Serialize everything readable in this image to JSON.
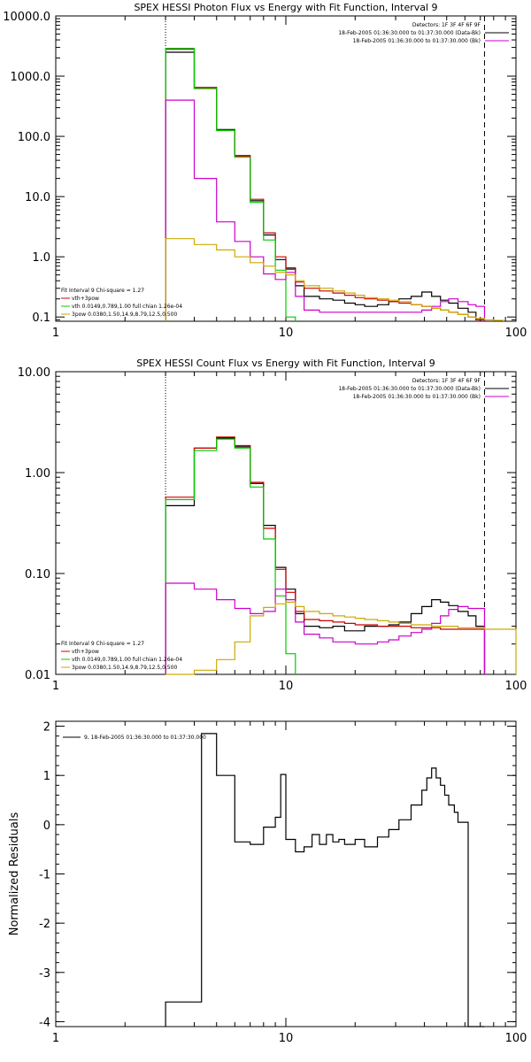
{
  "chart_data": [
    {
      "type": "line",
      "title": "SPEX HESSI Photon Flux vs Energy with Fit Function, Interval 9",
      "xscale": "log",
      "yscale": "log",
      "xlim": [
        1,
        100
      ],
      "ylim": [
        0.085,
        10000
      ],
      "xticks": [
        {
          "v": 1,
          "label": "1"
        },
        {
          "v": 10,
          "label": "10"
        },
        {
          "v": 100,
          "label": "100"
        }
      ],
      "yticks": [
        {
          "v": 0.1,
          "label": "0.1"
        },
        {
          "v": 1,
          "label": "1.0"
        },
        {
          "v": 10,
          "label": "10.0"
        },
        {
          "v": 100,
          "label": "100.0"
        },
        {
          "v": 1000,
          "label": "1000.0"
        },
        {
          "v": 10000,
          "label": "10000.0"
        }
      ],
      "vlines": [
        {
          "x": 3,
          "style": "dotted"
        },
        {
          "x": 73,
          "style": "dashed"
        }
      ],
      "legend_top": {
        "position": "top-right",
        "lines": [
          "Detectors: 1F 3F 4F 6F 9F",
          "18-Feb-2005 01:36:30.000 to 01:37:30.000 (Data-Bk)",
          "18-Feb-2005 01:36:30.000 to 01:37:30.000 (Bk)"
        ],
        "colors": [
          "",
          "#000000",
          "#cc00cc"
        ]
      },
      "legend_bottom": {
        "position": "bottom-left",
        "lines": [
          "Fit Interval 9   Chi-square = 1.27",
          "vth+3pow",
          "vth 0.0149,0.789,1.00  full chian 1.26e-04",
          "3pow 0.0380,1.50,14.9,8.79,12.5,0.500"
        ],
        "colors": [
          "",
          "#cc0000",
          "#00cc00",
          "#ccaa00"
        ]
      },
      "series": [
        {
          "name": "Data-Bk",
          "color": "#000000",
          "edges": [
            3,
            4,
            5,
            6,
            7,
            8,
            9,
            10,
            11,
            12,
            14,
            16,
            18,
            20,
            22,
            25,
            28,
            31,
            35,
            39,
            43,
            47,
            51,
            56,
            62,
            67,
            73
          ],
          "values": [
            2500,
            650,
            130,
            48,
            8.5,
            2.3,
            0.9,
            0.65,
            0.33,
            0.22,
            0.2,
            0.19,
            0.17,
            0.16,
            0.15,
            0.16,
            0.18,
            0.2,
            0.22,
            0.26,
            0.22,
            0.19,
            0.17,
            0.14,
            0.12,
            0.09
          ]
        },
        {
          "name": "vth+3pow",
          "color": "#cc0000",
          "edges": [
            3,
            4,
            5,
            6,
            7,
            8,
            9,
            10,
            11,
            12,
            14,
            16,
            18,
            20,
            22,
            25,
            28,
            31,
            35,
            39,
            43,
            47,
            51,
            56,
            62,
            67,
            73
          ],
          "values": [
            2800,
            640,
            128,
            47,
            9,
            2.5,
            1.0,
            0.62,
            0.38,
            0.3,
            0.27,
            0.25,
            0.23,
            0.21,
            0.2,
            0.19,
            0.18,
            0.17,
            0.16,
            0.15,
            0.14,
            0.13,
            0.12,
            0.11,
            0.1,
            0.09
          ]
        },
        {
          "name": "vth",
          "color": "#00cc00",
          "edges": [
            3,
            4,
            5,
            6,
            7,
            8,
            9,
            10,
            11
          ],
          "values": [
            2900,
            620,
            125,
            45,
            8,
            1.9,
            0.6,
            0.1
          ]
        },
        {
          "name": "Bk",
          "color": "#cc00cc",
          "edges": [
            3,
            4,
            5,
            6,
            7,
            8,
            9,
            10,
            11,
            12,
            14,
            16,
            18,
            20,
            22,
            25,
            28,
            31,
            35,
            39,
            43,
            47,
            51,
            56,
            62,
            67,
            73
          ],
          "values": [
            400,
            20,
            3.8,
            1.8,
            1.0,
            0.52,
            0.42,
            0.55,
            0.22,
            0.13,
            0.12,
            0.12,
            0.12,
            0.12,
            0.12,
            0.12,
            0.12,
            0.12,
            0.12,
            0.13,
            0.15,
            0.18,
            0.2,
            0.18,
            0.16,
            0.15
          ]
        },
        {
          "name": "3pow",
          "color": "#ccaa00",
          "edges": [
            3,
            4,
            5,
            6,
            7,
            8,
            9,
            10,
            11,
            12,
            14,
            16,
            18,
            20,
            22,
            25,
            28,
            31,
            35,
            39,
            43,
            47,
            51,
            56,
            62,
            67,
            73,
            80,
            88
          ],
          "values": [
            2.0,
            1.6,
            1.3,
            1.0,
            0.8,
            0.7,
            0.55,
            0.5,
            0.4,
            0.33,
            0.3,
            0.27,
            0.25,
            0.23,
            0.21,
            0.2,
            0.19,
            0.18,
            0.16,
            0.15,
            0.14,
            0.13,
            0.12,
            0.11,
            0.1,
            0.095,
            0.09,
            0.088
          ]
        }
      ]
    },
    {
      "type": "line",
      "title": "SPEX HESSI Count Flux vs Energy with Fit Function, Interval 9",
      "xscale": "log",
      "yscale": "log",
      "xlim": [
        1,
        100
      ],
      "ylim": [
        0.01,
        10
      ],
      "xticks": [
        {
          "v": 1,
          "label": "1"
        },
        {
          "v": 10,
          "label": "10"
        },
        {
          "v": 100,
          "label": "100"
        }
      ],
      "yticks": [
        {
          "v": 0.01,
          "label": "0.01"
        },
        {
          "v": 0.1,
          "label": "0.10"
        },
        {
          "v": 1,
          "label": "1.00"
        },
        {
          "v": 10,
          "label": "10.00"
        }
      ],
      "vlines": [
        {
          "x": 3,
          "style": "dotted"
        },
        {
          "x": 73,
          "style": "dashed"
        }
      ],
      "legend_top": {
        "position": "top-right",
        "lines": [
          "Detectors: 1F 3F 4F 6F 9F",
          "18-Feb-2005 01:36:30.000 to 01:37:30.000 (Data-Bk)",
          "18-Feb-2005 01:36:30.000 to 01:37:30.000 (Bk)"
        ],
        "colors": [
          "",
          "#000000",
          "#cc00cc"
        ]
      },
      "legend_bottom": {
        "position": "bottom-left",
        "lines": [
          "Fit Interval 9   Chi-square = 1.27",
          "vth+3pow",
          "vth 0.0149,0.789,1.00  full chian 1.26e-04",
          "3pow 0.0380,1.50,14.9,8.79,12.5,0.500"
        ],
        "colors": [
          "",
          "#cc0000",
          "#00cc00",
          "#ccaa00"
        ]
      },
      "series": [
        {
          "name": "Data-Bk",
          "color": "#000000",
          "edges": [
            3,
            4,
            5,
            6,
            7,
            8,
            9,
            10,
            11,
            12,
            14,
            16,
            18,
            20,
            22,
            25,
            28,
            31,
            35,
            39,
            43,
            47,
            51,
            56,
            62,
            67,
            73
          ],
          "values": [
            0.47,
            1.75,
            2.2,
            1.8,
            0.78,
            0.3,
            0.115,
            0.07,
            0.04,
            0.03,
            0.029,
            0.03,
            0.027,
            0.027,
            0.03,
            0.03,
            0.031,
            0.033,
            0.04,
            0.047,
            0.055,
            0.052,
            0.048,
            0.042,
            0.038,
            0.03
          ]
        },
        {
          "name": "vth+3pow",
          "color": "#cc0000",
          "edges": [
            3,
            4,
            5,
            6,
            7,
            8,
            9,
            10,
            11,
            12,
            14,
            16,
            18,
            20,
            22,
            25,
            28,
            31,
            35,
            39,
            43,
            47,
            51,
            56,
            62,
            67,
            73
          ],
          "values": [
            0.57,
            1.75,
            2.25,
            1.85,
            0.8,
            0.28,
            0.11,
            0.065,
            0.042,
            0.035,
            0.034,
            0.033,
            0.032,
            0.031,
            0.031,
            0.03,
            0.03,
            0.03,
            0.029,
            0.029,
            0.029,
            0.028,
            0.028,
            0.028,
            0.028,
            0.028
          ]
        },
        {
          "name": "vth",
          "color": "#00cc00",
          "edges": [
            3,
            4,
            5,
            6,
            7,
            8,
            9,
            10,
            11
          ],
          "values": [
            0.54,
            1.65,
            2.15,
            1.75,
            0.72,
            0.22,
            0.06,
            0.016
          ]
        },
        {
          "name": "Bk",
          "color": "#cc00cc",
          "edges": [
            3,
            4,
            5,
            6,
            7,
            8,
            9,
            10,
            11,
            12,
            14,
            16,
            18,
            20,
            22,
            25,
            28,
            31,
            35,
            39,
            43,
            47,
            51,
            56,
            62,
            67,
            73
          ],
          "values": [
            0.08,
            0.07,
            0.055,
            0.045,
            0.04,
            0.042,
            0.07,
            0.055,
            0.033,
            0.025,
            0.023,
            0.021,
            0.021,
            0.02,
            0.02,
            0.021,
            0.022,
            0.024,
            0.026,
            0.028,
            0.032,
            0.038,
            0.044,
            0.047,
            0.045,
            0.045
          ]
        },
        {
          "name": "3pow",
          "color": "#ccaa00",
          "edges": [
            3,
            4,
            5,
            6,
            7,
            8,
            9,
            10,
            11,
            12,
            14,
            16,
            18,
            20,
            22,
            25,
            28,
            31,
            35,
            39,
            43,
            47,
            51,
            56,
            62,
            67,
            73,
            80,
            88,
            100
          ],
          "values": [
            0.009,
            0.011,
            0.014,
            0.021,
            0.038,
            0.046,
            0.05,
            0.052,
            0.047,
            0.042,
            0.04,
            0.038,
            0.037,
            0.036,
            0.035,
            0.034,
            0.033,
            0.032,
            0.031,
            0.031,
            0.03,
            0.03,
            0.03,
            0.029,
            0.029,
            0.029,
            0.028,
            0.028,
            0.028
          ]
        }
      ]
    },
    {
      "type": "line",
      "title": "",
      "ylabel": "Normalized Residuals",
      "xscale": "log",
      "yscale": "linear",
      "xlim": [
        1,
        100
      ],
      "ylim": [
        -4.1,
        2.1
      ],
      "xticks": [
        {
          "v": 1,
          "label": "1"
        },
        {
          "v": 10,
          "label": "10"
        },
        {
          "v": 100,
          "label": "100"
        }
      ],
      "yticks": [
        {
          "v": -4,
          "label": "-4"
        },
        {
          "v": -3,
          "label": "-3"
        },
        {
          "v": -2,
          "label": "-2"
        },
        {
          "v": -1,
          "label": "-1"
        },
        {
          "v": 0,
          "label": "0"
        },
        {
          "v": 1,
          "label": "1"
        },
        {
          "v": 2,
          "label": "2"
        }
      ],
      "legend_top": {
        "position": "top-left",
        "lines": [
          "9, 18-Feb-2005 01:36:30.000 to 01:37:30.000"
        ],
        "colors": [
          "#000000"
        ]
      },
      "series": [
        {
          "name": "9, 18-Feb-2005 01:36:30.000 to 01:37:30.000",
          "color": "#000000",
          "edges": [
            3,
            4.3,
            5,
            6,
            7,
            8,
            9,
            9.5,
            10,
            11,
            12,
            13,
            14,
            15,
            16,
            17,
            18,
            20,
            22,
            25,
            28,
            31,
            35,
            39,
            41,
            43,
            45,
            47,
            49,
            51,
            54,
            56,
            62,
            67,
            73
          ],
          "values": [
            -3.6,
            1.85,
            1.0,
            -0.35,
            -0.4,
            -0.05,
            0.15,
            1.02,
            -0.3,
            -0.55,
            -0.45,
            -0.2,
            -0.4,
            -0.2,
            -0.35,
            -0.3,
            -0.4,
            -0.3,
            -0.45,
            -0.25,
            -0.1,
            0.1,
            0.4,
            0.7,
            0.95,
            1.15,
            0.95,
            0.8,
            0.6,
            0.4,
            0.25,
            0.05,
            -4.1,
            -4.1
          ]
        }
      ]
    }
  ]
}
